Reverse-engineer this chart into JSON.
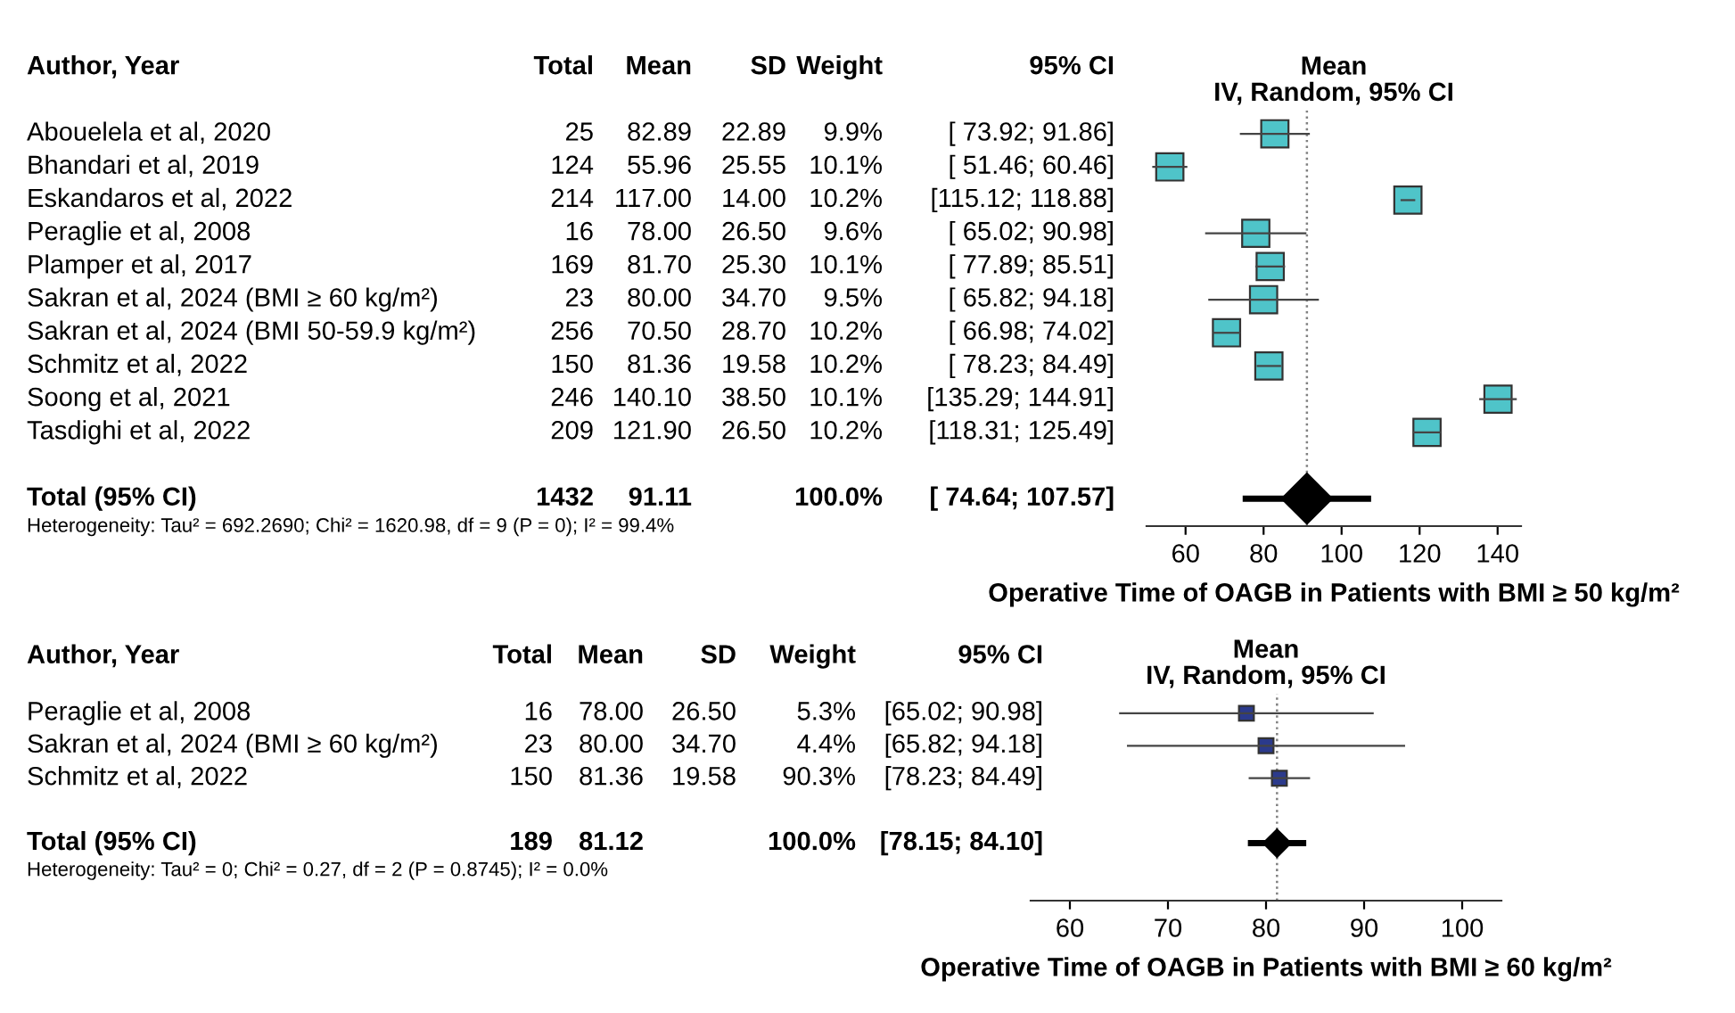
{
  "chart_data": [
    {
      "type": "scatter",
      "orientation": "horizontal",
      "title": "Mean\nIV, Random, 95% CI",
      "ylabel": "Author, Year",
      "xlabel": "Operative Time of OAGB in Patients with BMI ≥ 50 kg/m²",
      "categories": [
        "Abouelela et al, 2020",
        "Bhandari et al, 2019",
        "Eskandaros et al, 2022",
        "Peraglie et al, 2008",
        "Plamper et al, 2017",
        "Sakran et al, 2024 (BMI ≥ 60 kg/m²)",
        "Sakran et al, 2024 (BMI 50-59.9 kg/m²)",
        "Schmitz et al, 2022",
        "Soong et al, 2021",
        "Tasdighi et al, 2022",
        null,
        "Total (95% CI)"
      ],
      "series": [
        {
          "marker": "square",
          "color": "#4fc4c9",
          "values": [
            82.89,
            55.96,
            117.0,
            78.0,
            81.7,
            80.0,
            70.5,
            81.36,
            140.1,
            121.9,
            null,
            null
          ],
          "errors": [
            [
              73.92,
              91.86
            ],
            [
              51.46,
              60.46
            ],
            [
              115.12,
              118.88
            ],
            [
              65.02,
              90.98
            ],
            [
              77.89,
              85.51
            ],
            [
              65.82,
              94.18
            ],
            [
              66.98,
              74.02
            ],
            [
              78.23,
              84.49
            ],
            [
              135.29,
              144.91
            ],
            [
              118.31,
              125.49
            ],
            null,
            null
          ]
        },
        {
          "marker": "diamond",
          "color": "#000000",
          "values": [
            null,
            null,
            null,
            null,
            null,
            null,
            null,
            null,
            null,
            null,
            null,
            91.11
          ],
          "errors": [
            null,
            null,
            null,
            null,
            null,
            null,
            null,
            null,
            null,
            null,
            null,
            [
              74.64,
              107.57
            ]
          ]
        }
      ],
      "xlim": [
        50,
        146
      ],
      "xticks": [
        60,
        80,
        100,
        120,
        140
      ],
      "tick_labels": "x",
      "grid": false,
      "ref_lines": [
        {
          "axis": "x",
          "value": 91.11,
          "label": null,
          "color": "#808080",
          "line_style": "dotted"
        }
      ],
      "annotations": [
        "Total",
        "Mean",
        "SD",
        "Weight",
        "95% CI",
        "25",
        "82.89",
        "22.89",
        "9.9%",
        "[ 73.92; 91.86]",
        "124",
        "55.96",
        "25.55",
        "10.1%",
        "[ 51.46; 60.46]",
        "214",
        "117.00",
        "14.00",
        "10.2%",
        "[115.12; 118.88]",
        "16",
        "78.00",
        "26.50",
        "9.6%",
        "[ 65.02; 90.98]",
        "169",
        "81.70",
        "25.30",
        "10.1%",
        "[ 77.89; 85.51]",
        "23",
        "80.00",
        "34.70",
        "9.5%",
        "[ 65.82; 94.18]",
        "256",
        "70.50",
        "28.70",
        "10.2%",
        "[ 66.98; 74.02]",
        "150",
        "81.36",
        "19.58",
        "10.2%",
        "[ 78.23; 84.49]",
        "246",
        "140.10",
        "38.50",
        "10.1%",
        "[135.29; 144.91]",
        "209",
        "121.90",
        "26.50",
        "10.2%",
        "[118.31; 125.49]",
        "1432",
        "91.11",
        null,
        "100.0%",
        "[ 74.64; 107.57]",
        "Heterogeneity: Tau² = 692.2690; Chi² = 1620.98, df = 9 (P = 0); I² = 99.4%"
      ]
    },
    {
      "type": "scatter",
      "orientation": "horizontal",
      "title": "Mean\nIV, Random, 95% CI",
      "ylabel": "Author, Year",
      "xlabel": "Operative Time of OAGB in Patients with BMI ≥ 60 kg/m²",
      "categories": [
        "Peraglie et al, 2008",
        "Sakran et al, 2024 (BMI ≥ 60 kg/m²)",
        "Schmitz et al, 2022",
        null,
        "Total (95% CI)"
      ],
      "series": [
        {
          "marker": "square",
          "color": "#2b3a8c",
          "values": [
            78.0,
            80.0,
            81.36,
            null,
            null
          ],
          "errors": [
            [
              65.02,
              90.98
            ],
            [
              65.82,
              94.18
            ],
            [
              78.23,
              84.49
            ],
            null,
            null
          ]
        },
        {
          "marker": "diamond",
          "color": "#000000",
          "values": [
            null,
            null,
            null,
            null,
            81.12
          ],
          "errors": [
            null,
            null,
            null,
            null,
            [
              78.15,
              84.1
            ]
          ]
        }
      ],
      "xlim": [
        56,
        104
      ],
      "xticks": [
        60,
        70,
        80,
        90,
        100
      ],
      "tick_labels": "x",
      "grid": false,
      "ref_lines": [
        {
          "axis": "x",
          "value": 81.12,
          "label": null,
          "color": "#808080",
          "line_style": "dotted"
        }
      ],
      "annotations": [
        "Total",
        "Mean",
        "SD",
        "Weight",
        "95% CI",
        "16",
        "78.00",
        "26.50",
        "5.3%",
        "[65.02; 90.98]",
        "23",
        "80.00",
        "34.70",
        "4.4%",
        "[65.82; 94.18]",
        "150",
        "81.36",
        "19.58",
        "90.3%",
        "[78.23; 84.49]",
        "189",
        "81.12",
        null,
        "100.0%",
        "[78.15; 84.10]",
        "Heterogeneity: Tau² = 0; Chi² = 0.27, df = 2 (P = 0.8745); I² = 0.0%"
      ]
    }
  ]
}
